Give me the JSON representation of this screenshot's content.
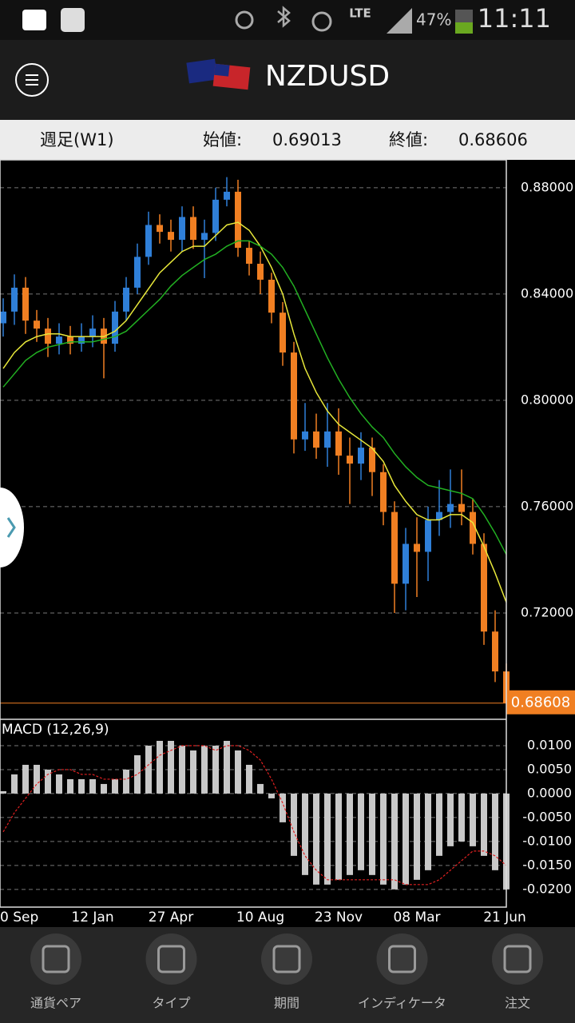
{
  "status_bar": {
    "network": "LTE",
    "battery": "47%",
    "time": "11:11"
  },
  "header": {
    "title": "NZDUSD"
  },
  "info_bar": {
    "period": "週足(W1)",
    "open_label": "始値:",
    "open": 0.69013,
    "close_label": "終値:",
    "close": 0.68606
  },
  "chart_data": [
    {
      "type": "candlestick",
      "categories": [
        null,
        "0 Sep",
        null,
        null,
        null,
        null,
        null,
        null,
        "12 Jan",
        null,
        null,
        null,
        null,
        null,
        null,
        "27 Apr",
        null,
        null,
        null,
        null,
        null,
        null,
        null,
        "10 Aug",
        null,
        null,
        null,
        null,
        null,
        null,
        "23 Nov",
        null,
        null,
        null,
        null,
        null,
        null,
        "08 Mar",
        null,
        null,
        null,
        null,
        null,
        null,
        null,
        "21 Jun"
      ],
      "open": [
        0.829,
        0.8334,
        0.8424,
        0.83,
        0.827,
        0.8213,
        0.824,
        0.8213,
        0.824,
        0.827,
        0.8213,
        0.8334,
        0.8424,
        0.854,
        0.866,
        0.8634,
        0.8604,
        0.869,
        0.8604,
        0.863,
        0.8755,
        0.8785,
        0.8574,
        0.8514,
        0.8454,
        0.833,
        0.818,
        0.7853,
        0.7883,
        0.7822,
        0.7883,
        0.7792,
        0.7762,
        0.7822,
        0.773,
        0.758,
        0.731,
        0.746,
        0.743,
        0.755,
        0.758,
        0.761,
        0.758,
        0.746,
        0.713,
        0.698
      ],
      "high": [
        0.8384,
        0.8474,
        0.8464,
        0.834,
        0.831,
        0.829,
        0.828,
        0.829,
        0.832,
        0.831,
        0.8374,
        0.8464,
        0.859,
        0.871,
        0.87,
        0.868,
        0.873,
        0.873,
        0.868,
        0.88,
        0.884,
        0.883,
        0.86,
        0.856,
        0.848,
        0.837,
        0.822,
        0.799,
        0.795,
        0.799,
        0.797,
        0.786,
        0.788,
        0.786,
        0.776,
        0.762,
        0.752,
        0.756,
        0.76,
        0.77,
        0.774,
        0.774,
        0.763,
        0.75,
        0.721,
        0.701
      ],
      "low": [
        0.824,
        0.8284,
        0.825,
        0.822,
        0.8163,
        0.8173,
        0.8173,
        0.8183,
        0.82,
        0.8083,
        0.8183,
        0.83,
        0.84,
        0.851,
        0.859,
        0.856,
        0.856,
        0.857,
        0.846,
        0.86,
        0.873,
        0.854,
        0.847,
        0.84,
        0.829,
        0.813,
        0.78,
        0.781,
        0.778,
        0.775,
        0.772,
        0.761,
        0.77,
        0.764,
        0.753,
        0.72,
        0.721,
        0.726,
        0.732,
        0.749,
        0.752,
        0.753,
        0.742,
        0.708,
        0.694,
        0.6861
      ],
      "close": [
        0.8334,
        0.8424,
        0.83,
        0.827,
        0.8213,
        0.824,
        0.8213,
        0.824,
        0.827,
        0.8213,
        0.8334,
        0.8424,
        0.854,
        0.866,
        0.8634,
        0.8604,
        0.869,
        0.8604,
        0.863,
        0.8755,
        0.8785,
        0.8574,
        0.8514,
        0.8454,
        0.833,
        0.818,
        0.7853,
        0.7883,
        0.7822,
        0.7883,
        0.7792,
        0.7762,
        0.7822,
        0.773,
        0.758,
        0.731,
        0.746,
        0.743,
        0.755,
        0.758,
        0.761,
        0.758,
        0.746,
        0.713,
        0.698,
        0.6861
      ],
      "up_color": "#2f7fd8",
      "down_color": "#f07f22",
      "series": [
        {
          "color": "#e8e83a",
          "values": [
            0.812,
            0.818,
            0.822,
            0.824,
            0.825,
            0.825,
            0.824,
            0.824,
            0.824,
            0.824,
            0.826,
            0.83,
            0.836,
            0.842,
            0.848,
            0.852,
            0.856,
            0.858,
            0.858,
            0.862,
            0.866,
            0.867,
            0.864,
            0.858,
            0.85,
            0.84,
            0.825,
            0.812,
            0.803,
            0.796,
            0.791,
            0.788,
            0.785,
            0.782,
            0.777,
            0.768,
            0.762,
            0.757,
            0.755,
            0.755,
            0.757,
            0.757,
            0.754,
            0.745,
            0.735,
            0.724
          ]
        },
        {
          "color": "#22b022",
          "values": [
            0.805,
            0.81,
            0.815,
            0.818,
            0.82,
            0.821,
            0.822,
            0.822,
            0.822,
            0.823,
            0.824,
            0.826,
            0.83,
            0.834,
            0.838,
            0.843,
            0.847,
            0.85,
            0.853,
            0.855,
            0.858,
            0.86,
            0.86,
            0.858,
            0.855,
            0.85,
            0.843,
            0.834,
            0.825,
            0.816,
            0.808,
            0.801,
            0.795,
            0.79,
            0.786,
            0.78,
            0.775,
            0.771,
            0.768,
            0.767,
            0.766,
            0.765,
            0.763,
            0.757,
            0.75,
            0.742
          ]
        }
      ],
      "ylim": [
        0.686,
        0.8905
      ],
      "yticks": [
        {
          "value": 0.88,
          "label": "0.88000"
        },
        {
          "value": 0.84,
          "label": "0.84000"
        },
        {
          "value": 0.8,
          "label": "0.80000"
        },
        {
          "value": 0.76,
          "label": "0.76000"
        },
        {
          "value": 0.72,
          "label": "0.72000"
        }
      ],
      "grid": true,
      "current_price": 0.68608,
      "current_price_color": "#f07f22"
    },
    {
      "type": "macd",
      "title": "MACD (12,26,9)",
      "values": [
        0.0005,
        0.004,
        0.006,
        0.006,
        0.005,
        0.004,
        0.003,
        0.003,
        0.003,
        0.002,
        0.003,
        0.005,
        0.008,
        0.01,
        0.011,
        0.011,
        0.01,
        0.009,
        0.01,
        0.01,
        0.011,
        0.009,
        0.006,
        0.002,
        -0.001,
        -0.006,
        -0.013,
        -0.017,
        -0.019,
        -0.019,
        -0.018,
        -0.017,
        -0.016,
        -0.017,
        -0.019,
        -0.02,
        -0.019,
        -0.018,
        -0.016,
        -0.013,
        -0.011,
        -0.01,
        -0.011,
        -0.013,
        -0.016,
        -0.02
      ],
      "color": "#c8c8c8",
      "series": [
        {
          "color": "#e02020",
          "values": [
            -0.008,
            -0.004,
            -0.001,
            0.002,
            0.004,
            0.005,
            0.005,
            0.004,
            0.004,
            0.003,
            0.003,
            0.003,
            0.004,
            0.006,
            0.008,
            0.009,
            0.01,
            0.01,
            0.01,
            0.009,
            0.01,
            0.01,
            0.009,
            0.007,
            0.003,
            -0.002,
            -0.008,
            -0.013,
            -0.016,
            -0.018,
            -0.018,
            -0.018,
            -0.018,
            -0.018,
            -0.018,
            -0.018,
            -0.019,
            -0.019,
            -0.019,
            -0.018,
            -0.016,
            -0.014,
            -0.012,
            -0.012,
            -0.013,
            -0.015
          ]
        }
      ],
      "ylim": [
        -0.0237,
        0.0155
      ],
      "yticks": [
        {
          "value": 0.01,
          "label": "0.0100"
        },
        {
          "value": 0.005,
          "label": "0.0050"
        },
        {
          "value": 0,
          "label": "0.0000"
        },
        {
          "value": -0.005,
          "label": "-0.0050"
        },
        {
          "value": -0.01,
          "label": "-0.0100"
        },
        {
          "value": -0.015,
          "label": "-0.0150"
        },
        {
          "value": -0.02,
          "label": "-0.0200"
        }
      ],
      "grid": true
    }
  ],
  "nav": {
    "items": [
      "通貨ペア",
      "タイプ",
      "期間",
      "インディケータ",
      "注文"
    ]
  }
}
